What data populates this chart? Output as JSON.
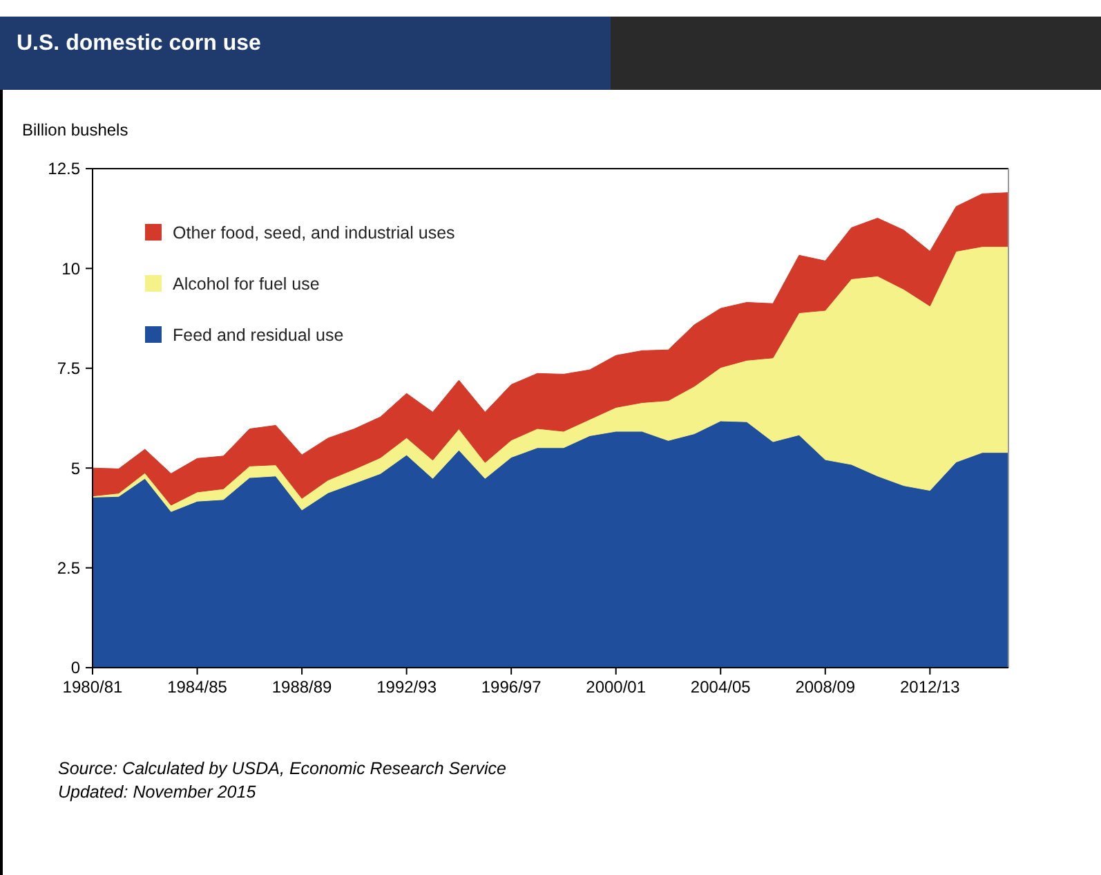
{
  "chart_data": {
    "type": "area",
    "stacked": true,
    "title": "U.S. domestic corn use",
    "ylabel": "Billion bushels",
    "categories": [
      "1980/81",
      null,
      null,
      null,
      "1984/85",
      null,
      null,
      null,
      "1988/89",
      null,
      null,
      null,
      "1992/93",
      null,
      null,
      null,
      "1996/97",
      null,
      null,
      null,
      "2000/01",
      null,
      null,
      null,
      "2004/05",
      null,
      null,
      null,
      "2008/09",
      null,
      null,
      null,
      "2012/13",
      null,
      null,
      null
    ],
    "series": [
      {
        "name": "Feed and residual use",
        "color": "#1f4e9c",
        "values": [
          4.27,
          4.29,
          4.74,
          3.91,
          4.17,
          4.21,
          4.76,
          4.8,
          3.95,
          4.38,
          4.62,
          4.86,
          5.33,
          4.74,
          5.45,
          4.74,
          5.27,
          5.51,
          5.51,
          5.81,
          5.92,
          5.92,
          5.69,
          5.86,
          6.18,
          6.16,
          5.66,
          5.83,
          5.21,
          5.09,
          4.8,
          4.56,
          4.44,
          5.15,
          5.39,
          5.39
        ]
      },
      {
        "name": "Alcohol for fuel use",
        "color": "#f5f28a",
        "values": [
          0.03,
          0.08,
          0.14,
          0.16,
          0.23,
          0.27,
          0.29,
          0.28,
          0.29,
          0.32,
          0.35,
          0.4,
          0.43,
          0.46,
          0.53,
          0.4,
          0.43,
          0.48,
          0.41,
          0.41,
          0.6,
          0.72,
          1.0,
          1.19,
          1.34,
          1.54,
          2.1,
          3.06,
          3.74,
          4.65,
          5.01,
          4.92,
          4.62,
          5.28,
          5.16,
          5.16
        ]
      },
      {
        "name": "Other food, seed, and industrial uses",
        "color": "#d43a2a",
        "values": [
          0.7,
          0.61,
          0.59,
          0.79,
          0.84,
          0.82,
          0.93,
          0.99,
          1.09,
          1.05,
          1.01,
          1.02,
          1.11,
          1.2,
          1.22,
          1.26,
          1.39,
          1.38,
          1.43,
          1.24,
          1.3,
          1.3,
          1.27,
          1.54,
          1.48,
          1.45,
          1.36,
          1.44,
          1.24,
          1.28,
          1.45,
          1.48,
          1.37,
          1.12,
          1.32,
          1.35
        ]
      }
    ],
    "ylim": [
      0,
      12.5
    ],
    "yticks": [
      0,
      2.5,
      5,
      7.5,
      10,
      12.5
    ],
    "legend": "top left",
    "annotations": [
      "Source: Calculated by USDA, Economic Research Service",
      "Updated: November 2015"
    ]
  }
}
